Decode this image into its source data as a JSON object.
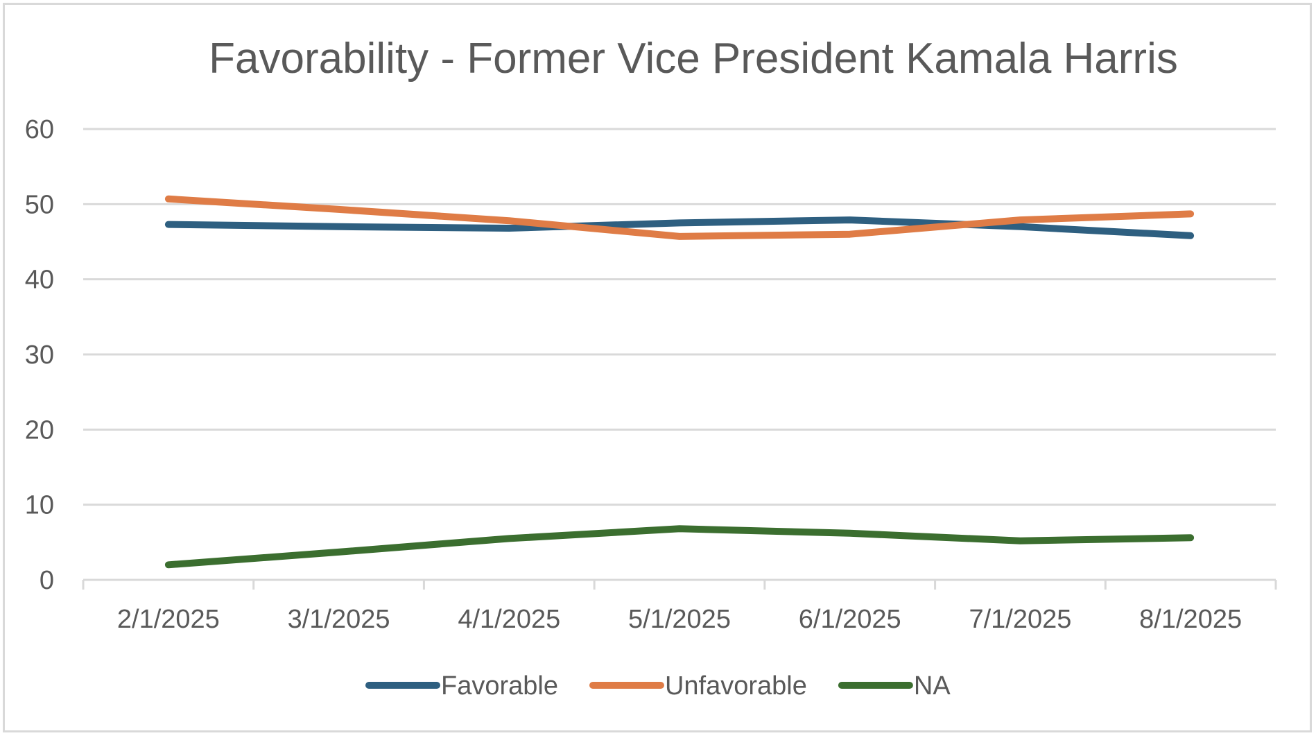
{
  "chart_data": {
    "type": "line",
    "title": "Favorability - Former Vice President Kamala Harris",
    "xlabel": "",
    "ylabel": "",
    "categories": [
      "2/1/2025",
      "3/1/2025",
      "4/1/2025",
      "5/1/2025",
      "6/1/2025",
      "7/1/2025",
      "8/1/2025"
    ],
    "ylim": [
      0,
      60
    ],
    "yticks": [
      "0",
      "10",
      "20",
      "30",
      "40",
      "50",
      "60"
    ],
    "grid": true,
    "legend_position": "bottom",
    "series": [
      {
        "name": "Favorable",
        "color": "#2e5f80",
        "values": [
          47.3,
          47.0,
          46.8,
          47.5,
          47.9,
          47.0,
          45.8
        ]
      },
      {
        "name": "Unfavorable",
        "color": "#df7c46",
        "values": [
          50.7,
          49.3,
          47.8,
          45.7,
          46.0,
          47.9,
          48.7
        ]
      },
      {
        "name": "NA",
        "color": "#3b6e2f",
        "values": [
          2.0,
          3.7,
          5.5,
          6.8,
          6.2,
          5.2,
          5.6
        ]
      }
    ]
  }
}
